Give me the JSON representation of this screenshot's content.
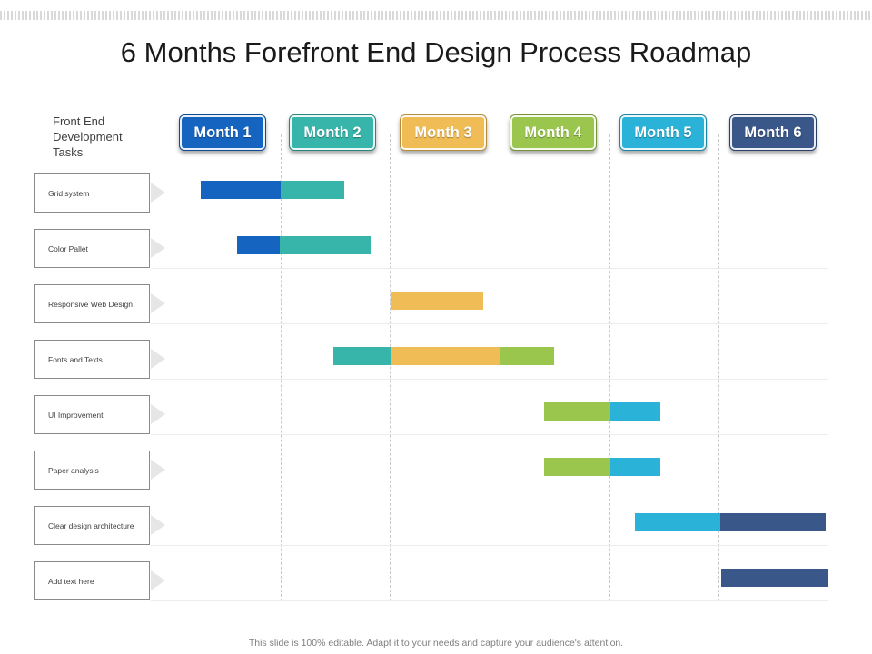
{
  "title": "6 Months Forefront End Design Process Roadmap",
  "tasks_header": "Front End\nDevelopment\nTasks",
  "months": [
    {
      "label": "Month 1",
      "color": "#1565c0"
    },
    {
      "label": "Month 2",
      "color": "#37b5aa"
    },
    {
      "label": "Month 3",
      "color": "#f0bc55"
    },
    {
      "label": "Month 4",
      "color": "#9ac64e"
    },
    {
      "label": "Month 5",
      "color": "#2ab2d9"
    },
    {
      "label": "Month 6",
      "color": "#3a578a"
    }
  ],
  "tasks": [
    {
      "label": "Grid system"
    },
    {
      "label": "Color Pallet"
    },
    {
      "label": "Responsive Web Design"
    },
    {
      "label": "Fonts and Texts"
    },
    {
      "label": "UI Improvement"
    },
    {
      "label": "Paper analysis"
    },
    {
      "label": "Clear design architecture"
    },
    {
      "label": "Add text here"
    }
  ],
  "chart_data": {
    "type": "gantt",
    "time_unit": "month",
    "tasks": [
      {
        "task": "Grid system",
        "segments": [
          {
            "start": 0.27,
            "end": 1.0,
            "month": 1
          },
          {
            "start": 1.0,
            "end": 1.58,
            "month": 2
          }
        ]
      },
      {
        "task": "Color Pallet",
        "segments": [
          {
            "start": 0.6,
            "end": 0.99,
            "month": 1
          },
          {
            "start": 0.99,
            "end": 1.82,
            "month": 2
          }
        ]
      },
      {
        "task": "Responsive Web Design",
        "segments": [
          {
            "start": 2.0,
            "end": 2.84,
            "month": 3
          }
        ]
      },
      {
        "task": "Fonts and Texts",
        "segments": [
          {
            "start": 1.48,
            "end": 2.0,
            "month": 2
          },
          {
            "start": 2.0,
            "end": 3.0,
            "month": 3
          },
          {
            "start": 3.0,
            "end": 3.49,
            "month": 4
          }
        ]
      },
      {
        "task": "UI Improvement",
        "segments": [
          {
            "start": 3.4,
            "end": 4.0,
            "month": 4
          },
          {
            "start": 4.0,
            "end": 4.45,
            "month": 5
          }
        ]
      },
      {
        "task": "Paper analysis",
        "segments": [
          {
            "start": 3.4,
            "end": 4.0,
            "month": 4
          },
          {
            "start": 4.0,
            "end": 4.45,
            "month": 5
          }
        ]
      },
      {
        "task": "Clear design architecture",
        "segments": [
          {
            "start": 4.22,
            "end": 5.0,
            "month": 5
          },
          {
            "start": 5.0,
            "end": 5.96,
            "month": 6
          }
        ]
      },
      {
        "task": "Add text here",
        "segments": [
          {
            "start": 5.01,
            "end": 5.98,
            "month": 6
          }
        ]
      }
    ]
  },
  "footer": "This slide is 100% editable. Adapt it to your needs and capture your audience's attention."
}
